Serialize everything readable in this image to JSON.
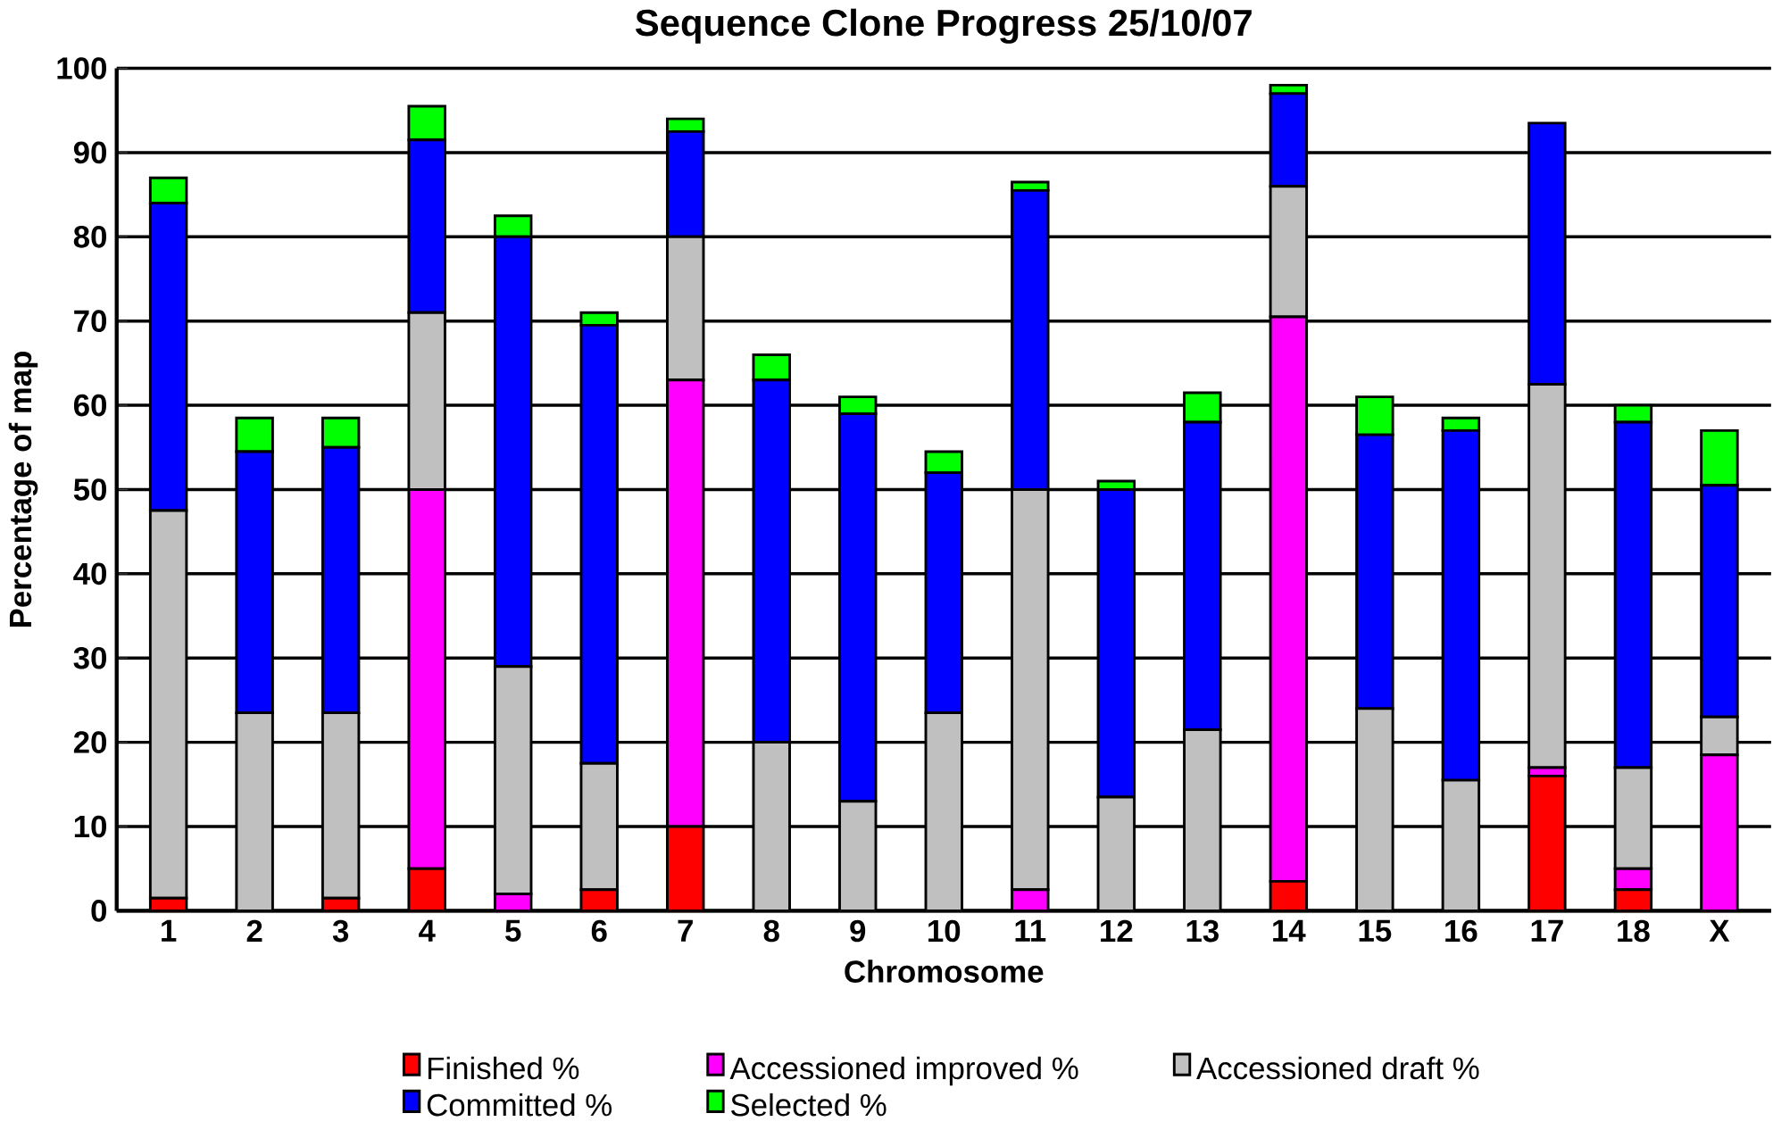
{
  "chart_data": {
    "type": "bar",
    "stacked": true,
    "title": "Sequence Clone Progress 25/10/07",
    "xlabel": "Chromosome",
    "ylabel": "Percentage of map",
    "categories": [
      "1",
      "2",
      "3",
      "4",
      "5",
      "6",
      "7",
      "8",
      "9",
      "10",
      "11",
      "12",
      "13",
      "14",
      "15",
      "16",
      "17",
      "18",
      "X"
    ],
    "series": [
      {
        "name": "Finished %",
        "color": "#ff0000",
        "values": [
          1.5,
          0,
          1.5,
          5,
          0,
          2.5,
          10,
          0,
          0,
          0,
          0,
          0,
          0,
          3.5,
          0,
          0,
          16,
          2.5,
          0
        ]
      },
      {
        "name": "Accessioned improved %",
        "color": "#ff00ff",
        "values": [
          0,
          0,
          0,
          45,
          2,
          0,
          53,
          0,
          0,
          0,
          2.5,
          0,
          0,
          67,
          0,
          0,
          1,
          2.5,
          18.5
        ]
      },
      {
        "name": "Accessioned draft %",
        "color": "#c0c0c0",
        "values": [
          46,
          23.5,
          22,
          21,
          27,
          15,
          17,
          20,
          13,
          23.5,
          47.5,
          13.5,
          21.5,
          15.5,
          24,
          15.5,
          45.5,
          12,
          4.5
        ]
      },
      {
        "name": "Committed %",
        "color": "#0000ff",
        "values": [
          36.5,
          31,
          31.5,
          20.5,
          51,
          52,
          12.5,
          43,
          46,
          28.5,
          35.5,
          36.5,
          36.5,
          11,
          32.5,
          41.5,
          31,
          41,
          27.5
        ]
      },
      {
        "name": "Selected %",
        "color": "#00ff00",
        "values": [
          3,
          4,
          3.5,
          4,
          2.5,
          1.5,
          1.5,
          3,
          2,
          2.5,
          1,
          1,
          3.5,
          1,
          4.5,
          1.5,
          0,
          2,
          6.5
        ]
      }
    ],
    "ylim": [
      0,
      100
    ],
    "yticks": [
      0,
      10,
      20,
      30,
      40,
      50,
      60,
      70,
      80,
      90,
      100
    ],
    "grid": "y",
    "legend": "bottom"
  }
}
